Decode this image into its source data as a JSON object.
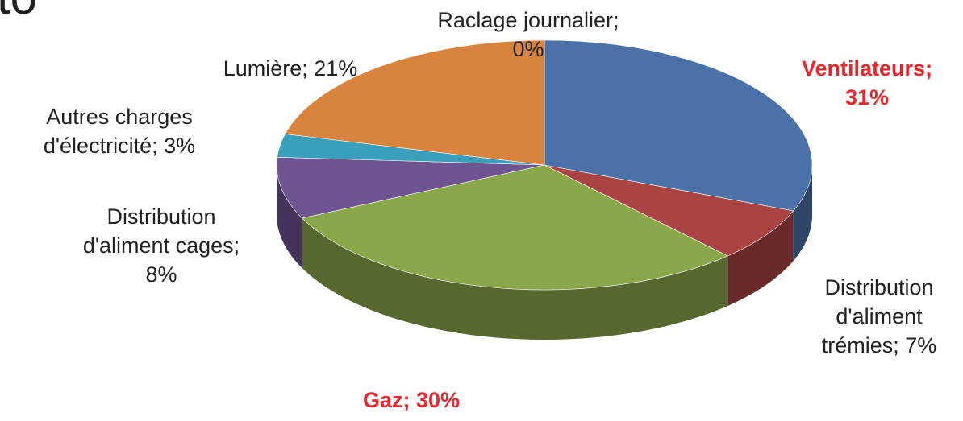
{
  "chart_data": {
    "type": "pie",
    "title": "to",
    "categories": [
      "Ventilateurs",
      "Distribution d'aliment trémies",
      "Gaz",
      "Distribution d'aliment cages",
      "Autres charges d'électricité",
      "Lumière",
      "Raclage journalier"
    ],
    "values": [
      31,
      7,
      30,
      8,
      3,
      21,
      0
    ],
    "value_labels": [
      "; 31%",
      "; 7%",
      "; 30%",
      "; 8%",
      "; 3%",
      "; 21%",
      "; 0%"
    ],
    "colors": [
      "#4a72a8",
      "#a94442",
      "#8aa84b",
      "#6e5490",
      "#3a9fba",
      "#d9843e",
      "#8fb0d8"
    ],
    "label_colors": [
      "#e8262b",
      "#222222",
      "#e8262b",
      "#222222",
      "#222222",
      "#222222",
      "#222222"
    ]
  }
}
